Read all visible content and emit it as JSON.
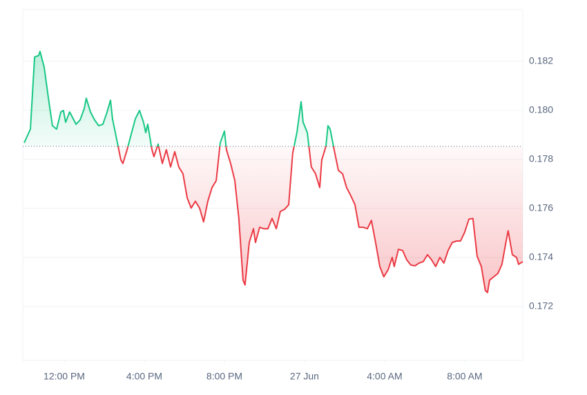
{
  "chart_data": {
    "type": "line",
    "baseline": 0.17853,
    "up_color": "#16c784",
    "down_color": "#ea3943",
    "xlim": [
      9.93,
      34.9
    ],
    "ylim": [
      0.1698,
      0.1841
    ],
    "xticks": [
      {
        "value": 12,
        "label": "12:00 PM"
      },
      {
        "value": 16,
        "label": "4:00 PM"
      },
      {
        "value": 20,
        "label": "8:00 PM"
      },
      {
        "value": 24,
        "label": "27 Jun"
      },
      {
        "value": 28,
        "label": "4:00 AM"
      },
      {
        "value": 32,
        "label": "8:00 AM"
      }
    ],
    "yticks": [
      0.172,
      0.174,
      0.176,
      0.178,
      {
        "value": 0.18,
        "label": "0.180"
      },
      0.182
    ],
    "grid": true,
    "x": [
      10.0,
      10.31,
      10.52,
      10.72,
      10.79,
      11.0,
      11.21,
      11.41,
      11.62,
      11.83,
      11.96,
      12.07,
      12.27,
      12.48,
      12.59,
      12.79,
      13.0,
      13.1,
      13.31,
      13.52,
      13.72,
      13.93,
      14.14,
      14.31,
      14.41,
      14.62,
      14.83,
      14.93,
      15.14,
      15.34,
      15.55,
      15.76,
      15.96,
      16.07,
      16.17,
      16.38,
      16.48,
      16.69,
      16.9,
      17.1,
      17.31,
      17.52,
      17.72,
      17.93,
      18.14,
      18.34,
      18.55,
      18.76,
      18.96,
      19.17,
      19.38,
      19.59,
      19.79,
      20.0,
      20.1,
      20.31,
      20.52,
      20.72,
      20.93,
      21.03,
      21.24,
      21.45,
      21.55,
      21.76,
      21.96,
      22.17,
      22.38,
      22.59,
      22.79,
      23.0,
      23.21,
      23.41,
      23.62,
      23.83,
      23.93,
      24.14,
      24.34,
      24.55,
      24.76,
      24.86,
      25.07,
      25.17,
      25.28,
      25.48,
      25.69,
      25.9,
      26.1,
      26.31,
      26.52,
      26.72,
      26.93,
      27.14,
      27.34,
      27.55,
      27.76,
      27.96,
      28.17,
      28.38,
      28.48,
      28.69,
      28.9,
      29.1,
      29.31,
      29.52,
      29.72,
      29.93,
      30.14,
      30.34,
      30.55,
      30.76,
      30.96,
      31.17,
      31.38,
      31.59,
      31.79,
      32.0,
      32.21,
      32.41,
      32.62,
      32.83,
      33.03,
      33.14,
      33.24,
      33.45,
      33.66,
      33.86,
      34.07,
      34.17,
      34.38,
      34.59,
      34.69,
      34.9
    ],
    "values": [
      0.17867,
      0.17923,
      0.18217,
      0.18223,
      0.1824,
      0.18175,
      0.18049,
      0.17937,
      0.17923,
      0.17993,
      0.17999,
      0.17951,
      0.17993,
      0.1796,
      0.17943,
      0.1796,
      0.18007,
      0.18049,
      0.17993,
      0.1796,
      0.17937,
      0.17943,
      0.17993,
      0.18041,
      0.17965,
      0.17881,
      0.17797,
      0.17783,
      0.17839,
      0.17901,
      0.17965,
      0.17999,
      0.17951,
      0.17909,
      0.17943,
      0.17839,
      0.17811,
      0.17862,
      0.17783,
      0.17839,
      0.17769,
      0.17831,
      0.17769,
      0.17741,
      0.17643,
      0.17601,
      0.17629,
      0.17601,
      0.17545,
      0.17629,
      0.17685,
      0.17713,
      0.17867,
      0.17915,
      0.17839,
      0.17783,
      0.17713,
      0.17559,
      0.17307,
      0.17288,
      0.17461,
      0.17517,
      0.17461,
      0.17523,
      0.17517,
      0.17517,
      0.17559,
      0.17517,
      0.17587,
      0.17596,
      0.17615,
      0.17825,
      0.17909,
      0.18035,
      0.17951,
      0.17909,
      0.17769,
      0.17741,
      0.17685,
      0.17797,
      0.17853,
      0.17937,
      0.17923,
      0.17839,
      0.17755,
      0.17741,
      0.17685,
      0.17652,
      0.17615,
      0.17523,
      0.17523,
      0.17517,
      0.17551,
      0.17461,
      0.17363,
      0.17321,
      0.17349,
      0.174,
      0.17363,
      0.17433,
      0.17428,
      0.17391,
      0.17369,
      0.17366,
      0.17377,
      0.17383,
      0.17411,
      0.17391,
      0.17363,
      0.174,
      0.17377,
      0.17428,
      0.17461,
      0.17467,
      0.17467,
      0.17503,
      0.17556,
      0.17559,
      0.17405,
      0.17363,
      0.17265,
      0.17257,
      0.17307,
      0.17321,
      0.17335,
      0.17372,
      0.17467,
      0.17509,
      0.17411,
      0.174,
      0.17372,
      0.17383
    ]
  }
}
